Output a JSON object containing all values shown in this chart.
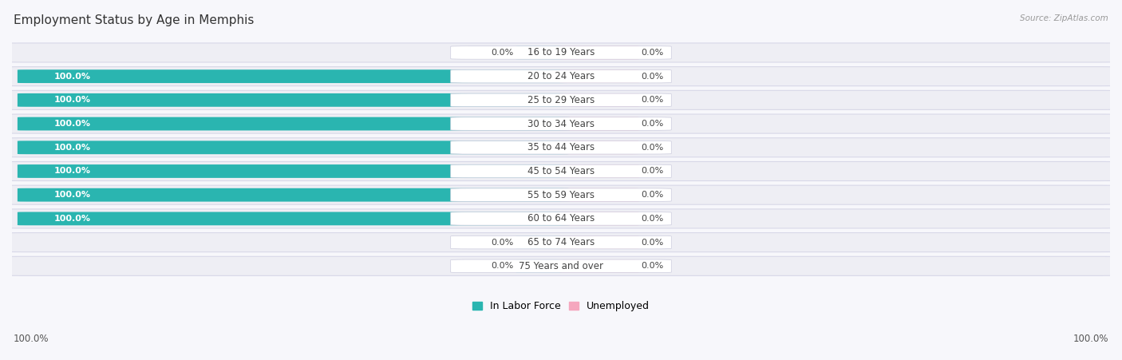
{
  "title": "Employment Status by Age in Memphis",
  "source": "Source: ZipAtlas.com",
  "categories": [
    "16 to 19 Years",
    "20 to 24 Years",
    "25 to 29 Years",
    "30 to 34 Years",
    "35 to 44 Years",
    "45 to 54 Years",
    "55 to 59 Years",
    "60 to 64 Years",
    "65 to 74 Years",
    "75 Years and over"
  ],
  "labor_force": [
    0.0,
    100.0,
    100.0,
    100.0,
    100.0,
    100.0,
    100.0,
    100.0,
    0.0,
    0.0
  ],
  "unemployed": [
    0.0,
    0.0,
    0.0,
    0.0,
    0.0,
    0.0,
    0.0,
    0.0,
    0.0,
    0.0
  ],
  "labor_force_color": "#2ab5b0",
  "labor_force_stub_color": "#7fd8d5",
  "unemployed_color": "#f5a7be",
  "row_bg_color": "#eeeef4",
  "row_border_color": "#d8d8e8",
  "label_bg_color": "#ffffff",
  "text_color_dark": "#444444",
  "text_color_white": "#ffffff",
  "fig_bg_color": "#f7f7fb",
  "legend_labor": "In Labor Force",
  "legend_unemployed": "Unemployed",
  "axis_label": "100.0%",
  "title_fontsize": 11,
  "label_fontsize": 8.5,
  "value_fontsize": 8.0
}
